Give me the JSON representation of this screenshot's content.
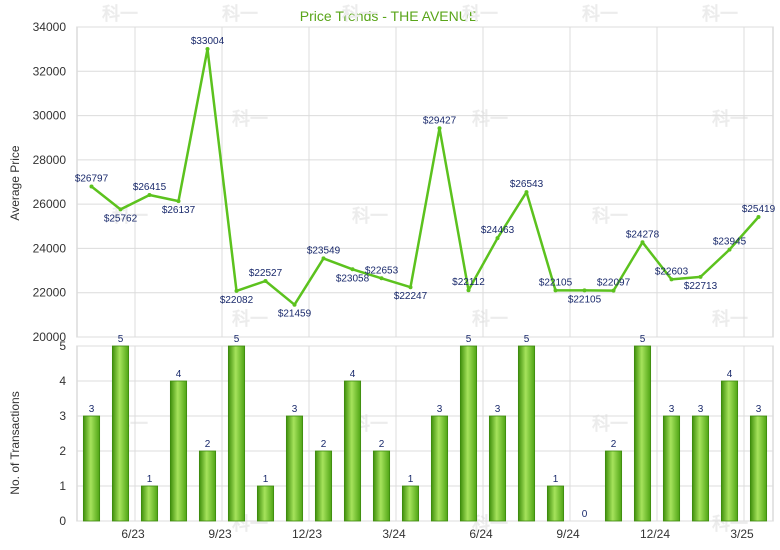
{
  "chart_data": [
    {
      "type": "line",
      "title": "Price Trends - THE AVENUE",
      "ylabel": "Average Price",
      "ylim": [
        20000,
        34000
      ],
      "yticks": [
        20000,
        22000,
        24000,
        26000,
        28000,
        30000,
        32000,
        34000
      ],
      "series": [
        {
          "values": [
            26797,
            25762,
            26415,
            26137,
            33004,
            22082,
            22527,
            21459,
            23549,
            23058,
            22653,
            22247,
            29427,
            22112,
            24463,
            26543,
            22105,
            22105,
            22097,
            24278,
            22603,
            22713,
            23945,
            25419
          ],
          "labels": [
            "$26797",
            "$25762",
            "$26415",
            "$26137",
            "$33004",
            "$22082",
            "$22527",
            "$21459",
            "$23549",
            "$23058",
            "$22653",
            "$22247",
            "$29427",
            "$22112",
            "$24463",
            "$26543",
            "$22105",
            "$22105",
            "$22097",
            "$24278",
            "$22603",
            "$22713",
            "$23945",
            "$25419"
          ]
        }
      ],
      "color": "#5cc21e",
      "grid": true
    },
    {
      "type": "bar",
      "ylabel": "No. of Transactions",
      "ylim": [
        0,
        5
      ],
      "yticks": [
        0,
        1,
        2,
        3,
        4,
        5
      ],
      "values": [
        3,
        5,
        1,
        4,
        2,
        5,
        1,
        3,
        2,
        4,
        2,
        1,
        3,
        5,
        3,
        5,
        1,
        0,
        2,
        5,
        3,
        3,
        4,
        3
      ],
      "xtick_labels": [
        "6/23",
        "9/23",
        "12/23",
        "3/24",
        "6/24",
        "9/24",
        "12/24",
        "3/25"
      ],
      "xtick_positions": [
        2,
        5,
        8,
        11,
        14,
        17,
        20,
        23
      ],
      "color": "#6cc82a",
      "grid": true
    }
  ],
  "watermark": "科一"
}
